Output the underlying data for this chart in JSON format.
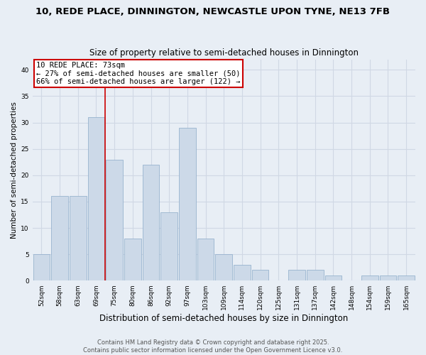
{
  "title1": "10, REDE PLACE, DINNINGTON, NEWCASTLE UPON TYNE, NE13 7FB",
  "title2": "Size of property relative to semi-detached houses in Dinnington",
  "xlabel": "Distribution of semi-detached houses by size in Dinnington",
  "ylabel": "Number of semi-detached properties",
  "categories": [
    "52sqm",
    "58sqm",
    "63sqm",
    "69sqm",
    "75sqm",
    "80sqm",
    "86sqm",
    "92sqm",
    "97sqm",
    "103sqm",
    "109sqm",
    "114sqm",
    "120sqm",
    "125sqm",
    "131sqm",
    "137sqm",
    "142sqm",
    "148sqm",
    "154sqm",
    "159sqm",
    "165sqm"
  ],
  "values": [
    5,
    16,
    16,
    31,
    23,
    8,
    22,
    13,
    29,
    8,
    5,
    3,
    2,
    0,
    2,
    2,
    1,
    0,
    1,
    1,
    1
  ],
  "bar_color": "#ccd9e8",
  "bar_edge_color": "#8baac8",
  "vline_index": 3,
  "annotation_title": "10 REDE PLACE: 73sqm",
  "annotation_line1": "← 27% of semi-detached houses are smaller (50)",
  "annotation_line2": "66% of semi-detached houses are larger (122) →",
  "annotation_box_color": "#ffffff",
  "annotation_box_edge": "#cc0000",
  "vline_color": "#cc0000",
  "ylim": [
    0,
    42
  ],
  "yticks": [
    0,
    5,
    10,
    15,
    20,
    25,
    30,
    35,
    40
  ],
  "background_color": "#e8eef5",
  "grid_color": "#d0d8e4",
  "footer1": "Contains HM Land Registry data © Crown copyright and database right 2025.",
  "footer2": "Contains public sector information licensed under the Open Government Licence v3.0.",
  "title1_fontsize": 9.5,
  "title2_fontsize": 8.5,
  "xlabel_fontsize": 8.5,
  "ylabel_fontsize": 7.5,
  "tick_fontsize": 6.5,
  "footer_fontsize": 6,
  "annotation_fontsize": 7.5
}
